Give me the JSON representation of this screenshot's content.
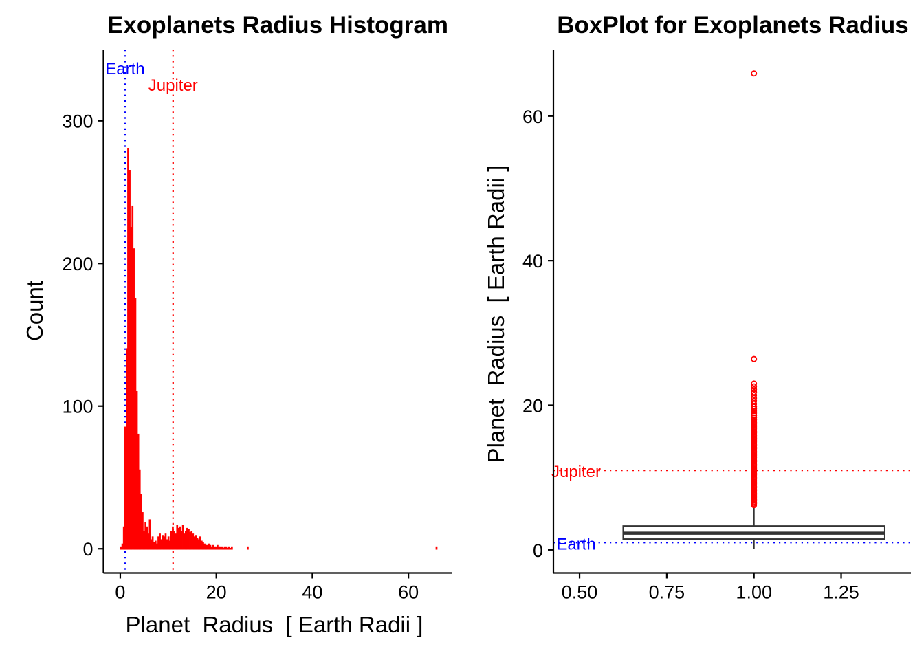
{
  "chart_data": [
    {
      "type": "bar",
      "title": "Exoplanets Radius Histogram",
      "xlabel": "Planet  Radius  [ Earth Radii ]",
      "ylabel": "Count",
      "xlim": [
        -3.5,
        69
      ],
      "ylim": [
        -17,
        350
      ],
      "xticks": [
        0,
        20,
        40,
        60
      ],
      "yticks": [
        0,
        100,
        200,
        300
      ],
      "grid": false,
      "bar_color": "#ff0000",
      "bin_width": 0.3,
      "bins": [
        [
          0.0,
          1
        ],
        [
          0.3,
          3
        ],
        [
          0.6,
          15
        ],
        [
          0.9,
          85
        ],
        [
          1.2,
          140
        ],
        [
          1.5,
          280
        ],
        [
          1.8,
          265
        ],
        [
          2.1,
          225
        ],
        [
          2.4,
          240
        ],
        [
          2.7,
          210
        ],
        [
          3.0,
          175
        ],
        [
          3.3,
          110
        ],
        [
          3.6,
          80
        ],
        [
          3.9,
          55
        ],
        [
          4.2,
          38
        ],
        [
          4.5,
          25
        ],
        [
          4.8,
          12
        ],
        [
          5.1,
          18
        ],
        [
          5.4,
          15
        ],
        [
          5.7,
          10
        ],
        [
          6.0,
          20
        ],
        [
          6.3,
          6
        ],
        [
          6.6,
          8
        ],
        [
          6.9,
          4
        ],
        [
          7.2,
          5
        ],
        [
          7.5,
          3
        ],
        [
          7.8,
          8
        ],
        [
          8.1,
          10
        ],
        [
          8.4,
          6
        ],
        [
          8.7,
          9
        ],
        [
          9.0,
          8
        ],
        [
          9.3,
          10
        ],
        [
          9.6,
          6
        ],
        [
          9.9,
          8
        ],
        [
          10.2,
          5
        ],
        [
          10.5,
          12
        ],
        [
          10.8,
          15
        ],
        [
          11.1,
          12
        ],
        [
          11.4,
          10
        ],
        [
          11.7,
          16
        ],
        [
          12.0,
          14
        ],
        [
          12.3,
          15
        ],
        [
          12.6,
          12
        ],
        [
          12.9,
          16
        ],
        [
          13.2,
          10
        ],
        [
          13.5,
          12
        ],
        [
          13.8,
          14
        ],
        [
          14.1,
          13
        ],
        [
          14.4,
          11
        ],
        [
          14.7,
          12
        ],
        [
          15.0,
          10
        ],
        [
          15.3,
          8
        ],
        [
          15.6,
          9
        ],
        [
          15.9,
          7
        ],
        [
          16.2,
          6
        ],
        [
          16.5,
          8
        ],
        [
          16.8,
          5
        ],
        [
          17.1,
          4
        ],
        [
          17.4,
          3
        ],
        [
          17.7,
          2
        ],
        [
          18.0,
          2
        ],
        [
          18.3,
          3
        ],
        [
          18.6,
          2
        ],
        [
          18.9,
          1
        ],
        [
          19.2,
          2
        ],
        [
          19.5,
          1
        ],
        [
          19.8,
          1
        ],
        [
          20.1,
          2
        ],
        [
          20.4,
          1
        ],
        [
          20.7,
          1
        ],
        [
          21.0,
          1
        ],
        [
          21.3,
          0
        ],
        [
          21.6,
          1
        ],
        [
          21.9,
          1
        ],
        [
          22.2,
          0
        ],
        [
          22.5,
          1
        ],
        [
          22.8,
          0
        ],
        [
          23.1,
          1
        ],
        [
          26.4,
          1
        ],
        [
          65.7,
          1
        ]
      ],
      "reference_lines": [
        {
          "label": "Earth",
          "x": 1,
          "color": "#0000ff"
        },
        {
          "label": "Jupiter",
          "x": 11,
          "color": "#ff0000"
        }
      ]
    },
    {
      "type": "box",
      "title": "BoxPlot for Exoplanets Radius",
      "xlabel": "",
      "ylabel": "Planet  Radius  [ Earth Radii ]",
      "xlim": [
        0.425,
        1.45
      ],
      "ylim": [
        -3.2,
        69.2
      ],
      "xticks": [
        "0.50",
        "0.75",
        "1.00",
        "1.25"
      ],
      "yticks": [
        0,
        20,
        40,
        60
      ],
      "grid": false,
      "box": {
        "x": 1.0,
        "width": 0.75,
        "whisker_low": 0.1,
        "q1": 1.5,
        "median": 2.3,
        "q3": 3.3,
        "whisker_high": 6.0
      },
      "outlier_color": "#ff0000",
      "outliers": [
        6.2,
        6.4,
        6.6,
        6.8,
        7.0,
        7.2,
        7.4,
        7.6,
        7.8,
        8.0,
        8.2,
        8.4,
        8.6,
        8.8,
        9.0,
        9.2,
        9.4,
        9.6,
        9.8,
        10.0,
        10.2,
        10.4,
        10.6,
        10.8,
        11.0,
        11.2,
        11.4,
        11.6,
        11.8,
        12.0,
        12.2,
        12.4,
        12.6,
        12.8,
        13.0,
        13.2,
        13.4,
        13.6,
        13.8,
        14.0,
        14.2,
        14.4,
        14.6,
        14.8,
        15.0,
        15.2,
        15.4,
        15.6,
        15.8,
        16.0,
        16.2,
        16.4,
        16.6,
        16.8,
        17.0,
        17.2,
        17.4,
        17.6,
        17.8,
        18.0,
        18.3,
        18.6,
        18.9,
        19.2,
        19.5,
        19.8,
        20.2,
        20.6,
        21.0,
        21.4,
        21.8,
        22.2,
        22.6,
        23.0,
        26.4,
        65.9
      ],
      "reference_lines": [
        {
          "label": "Jupiter",
          "y": 11,
          "color": "#ff0000"
        },
        {
          "label": "Earth",
          "y": 1,
          "color": "#0000ff"
        }
      ]
    }
  ]
}
